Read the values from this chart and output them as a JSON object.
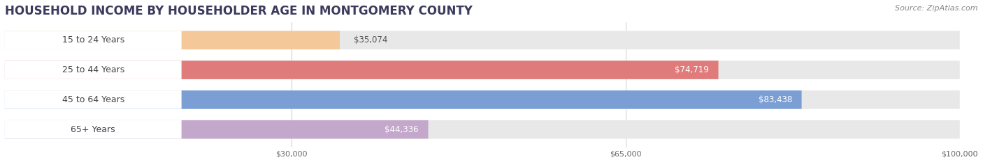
{
  "title": "HOUSEHOLD INCOME BY HOUSEHOLDER AGE IN MONTGOMERY COUNTY",
  "source": "Source: ZipAtlas.com",
  "categories": [
    "15 to 24 Years",
    "25 to 44 Years",
    "45 to 64 Years",
    "65+ Years"
  ],
  "values": [
    35074,
    74719,
    83438,
    44336
  ],
  "bar_colors": [
    "#F5C899",
    "#E07B7B",
    "#7B9FD4",
    "#C4A8CC"
  ],
  "bar_bg_color": "#E8E8E8",
  "value_labels": [
    "$35,074",
    "$74,719",
    "$83,438",
    "$44,336"
  ],
  "xticks": [
    30000,
    65000,
    100000
  ],
  "xtick_labels": [
    "$30,000",
    "$65,000",
    "$100,000"
  ],
  "xmax": 100000,
  "background_color": "#FFFFFF",
  "title_color": "#3A3A5C",
  "title_fontsize": 12,
  "source_fontsize": 8,
  "label_fontsize": 9,
  "value_fontsize": 8.5,
  "label_pill_color": "#FFFFFF",
  "value_inside_color": "#FFFFFF",
  "value_outside_color": "#555555"
}
